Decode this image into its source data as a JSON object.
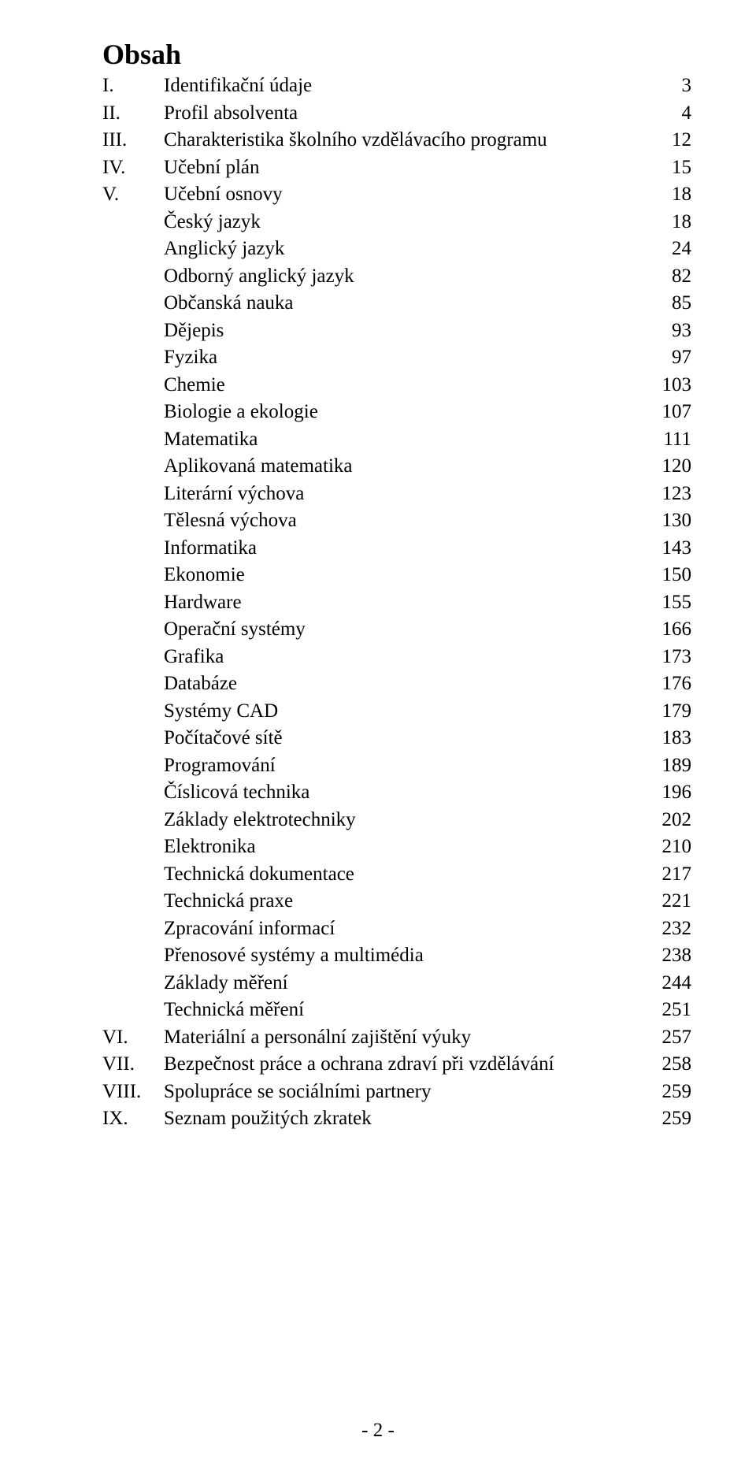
{
  "colors": {
    "background": "#ffffff",
    "text": "#000000"
  },
  "typography": {
    "font_family": "Times New Roman",
    "heading_fontsize_pt": 27,
    "body_fontsize_pt": 19,
    "heading_weight": "bold",
    "body_weight": "normal"
  },
  "heading": "Obsah",
  "toc": [
    {
      "roman": "I.",
      "text": "Identifikační údaje",
      "page": "3",
      "indent": false
    },
    {
      "roman": "II.",
      "text": "Profil absolventa",
      "page": "4",
      "indent": false
    },
    {
      "roman": "III.",
      "text": "Charakteristika školního vzdělávacího programu",
      "page": "12",
      "indent": false
    },
    {
      "roman": "IV.",
      "text": "Učební plán",
      "page": "15",
      "indent": false
    },
    {
      "roman": "V.",
      "text": "Učební osnovy",
      "page": "18",
      "indent": false
    },
    {
      "roman": "",
      "text": "Český jazyk",
      "page": "18",
      "indent": true
    },
    {
      "roman": "",
      "text": "Anglický jazyk",
      "page": "24",
      "indent": true
    },
    {
      "roman": "",
      "text": "Odborný anglický jazyk",
      "page": "82",
      "indent": true
    },
    {
      "roman": "",
      "text": "Občanská nauka",
      "page": "85",
      "indent": true
    },
    {
      "roman": "",
      "text": "Dějepis",
      "page": "93",
      "indent": true
    },
    {
      "roman": "",
      "text": "Fyzika",
      "page": "97",
      "indent": true
    },
    {
      "roman": "",
      "text": "Chemie",
      "page": "103",
      "indent": true
    },
    {
      "roman": "",
      "text": "Biologie a ekologie",
      "page": "107",
      "indent": true
    },
    {
      "roman": "",
      "text": "Matematika",
      "page": "111",
      "indent": true
    },
    {
      "roman": "",
      "text": "Aplikovaná matematika",
      "page": "120",
      "indent": true
    },
    {
      "roman": "",
      "text": "Literární výchova",
      "page": "123",
      "indent": true
    },
    {
      "roman": "",
      "text": "Tělesná výchova",
      "page": "130",
      "indent": true
    },
    {
      "roman": "",
      "text": "Informatika",
      "page": "143",
      "indent": true
    },
    {
      "roman": "",
      "text": "Ekonomie",
      "page": "150",
      "indent": true
    },
    {
      "roman": "",
      "text": "Hardware",
      "page": "155",
      "indent": true
    },
    {
      "roman": "",
      "text": "Operační systémy",
      "page": "166",
      "indent": true
    },
    {
      "roman": "",
      "text": "Grafika",
      "page": "173",
      "indent": true
    },
    {
      "roman": "",
      "text": "Databáze",
      "page": "176",
      "indent": true
    },
    {
      "roman": "",
      "text": "Systémy CAD",
      "page": "179",
      "indent": true
    },
    {
      "roman": "",
      "text": "Počítačové sítě",
      "page": "183",
      "indent": true
    },
    {
      "roman": "",
      "text": "Programování",
      "page": "189",
      "indent": true
    },
    {
      "roman": "",
      "text": "Číslicová technika",
      "page": "196",
      "indent": true
    },
    {
      "roman": "",
      "text": "Základy elektrotechniky",
      "page": "202",
      "indent": true
    },
    {
      "roman": "",
      "text": "Elektronika",
      "page": "210",
      "indent": true
    },
    {
      "roman": "",
      "text": "Technická dokumentace",
      "page": "217",
      "indent": true
    },
    {
      "roman": "",
      "text": "Technická praxe",
      "page": "221",
      "indent": true
    },
    {
      "roman": "",
      "text": "Zpracování informací",
      "page": "232",
      "indent": true
    },
    {
      "roman": "",
      "text": "Přenosové systémy a multimédia",
      "page": "238",
      "indent": true
    },
    {
      "roman": "",
      "text": "Základy měření",
      "page": "244",
      "indent": true
    },
    {
      "roman": "",
      "text": "Technická měření",
      "page": "251",
      "indent": true
    },
    {
      "roman": "VI.",
      "text": "Materiální a personální zajištění výuky",
      "page": "257",
      "indent": false
    },
    {
      "roman": "VII.",
      "text": "Bezpečnost práce a ochrana zdraví při vzdělávání",
      "page": "258",
      "indent": false
    },
    {
      "roman": "VIII.",
      "text": "Spolupráce se sociálními partnery",
      "page": "259",
      "indent": false
    },
    {
      "roman": "IX.",
      "text": "Seznam použitých zkratek",
      "page": "259",
      "indent": false
    }
  ],
  "footer": "- 2 -"
}
